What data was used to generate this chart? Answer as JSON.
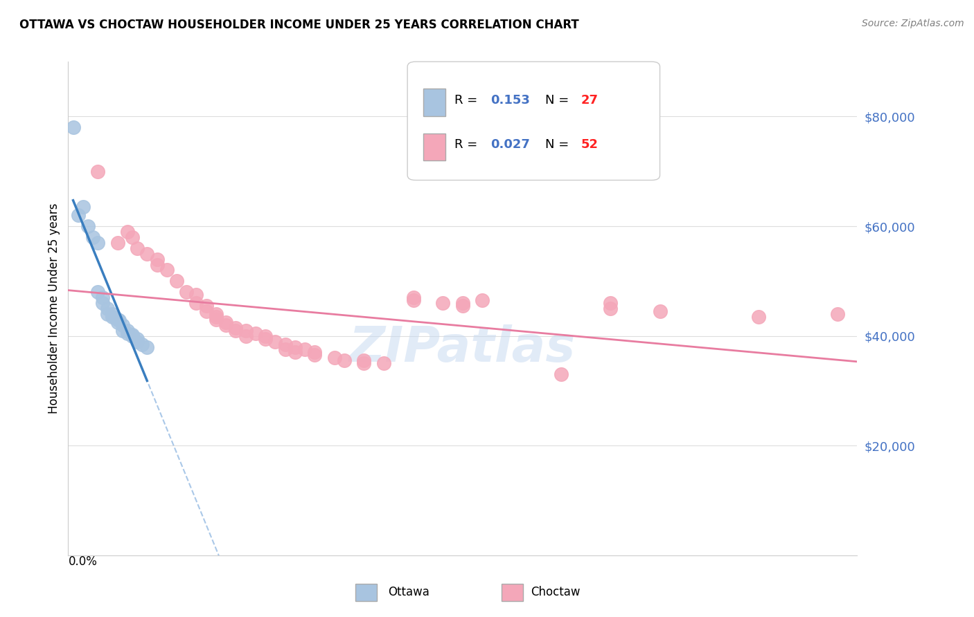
{
  "title": "OTTAWA VS CHOCTAW HOUSEHOLDER INCOME UNDER 25 YEARS CORRELATION CHART",
  "source": "Source: ZipAtlas.com",
  "ylabel": "Householder Income Under 25 years",
  "xlim": [
    0.0,
    0.8
  ],
  "ylim": [
    0,
    90000
  ],
  "yticks": [
    20000,
    40000,
    60000,
    80000
  ],
  "ytick_labels": [
    "$20,000",
    "$40,000",
    "$60,000",
    "$80,000"
  ],
  "ottawa_R": "0.153",
  "ottawa_N": "27",
  "choctaw_R": "0.027",
  "choctaw_N": "52",
  "ottawa_color": "#a8c4e0",
  "choctaw_color": "#f4a7b9",
  "ottawa_line_color": "#3a7ebf",
  "choctaw_line_color": "#e87ca0",
  "trendline_color": "#aac8e8",
  "watermark": "ZIPatlas",
  "ottawa_x": [
    0.005,
    0.01,
    0.015,
    0.02,
    0.025,
    0.03,
    0.03,
    0.035,
    0.035,
    0.04,
    0.04,
    0.045,
    0.045,
    0.048,
    0.05,
    0.05,
    0.052,
    0.055,
    0.055,
    0.06,
    0.06,
    0.065,
    0.065,
    0.07,
    0.07,
    0.075,
    0.08
  ],
  "ottawa_y": [
    78000,
    62000,
    63500,
    60000,
    58000,
    57000,
    48000,
    47000,
    46000,
    45000,
    44000,
    44000,
    43500,
    43200,
    43000,
    42500,
    42800,
    42000,
    41000,
    41000,
    40500,
    40000,
    40200,
    39500,
    39000,
    38500,
    38000
  ],
  "choctaw_x": [
    0.03,
    0.05,
    0.06,
    0.065,
    0.07,
    0.08,
    0.09,
    0.09,
    0.1,
    0.11,
    0.12,
    0.13,
    0.13,
    0.14,
    0.14,
    0.15,
    0.15,
    0.15,
    0.16,
    0.16,
    0.17,
    0.17,
    0.18,
    0.18,
    0.19,
    0.2,
    0.2,
    0.21,
    0.22,
    0.22,
    0.23,
    0.23,
    0.24,
    0.25,
    0.25,
    0.27,
    0.28,
    0.3,
    0.3,
    0.32,
    0.35,
    0.35,
    0.38,
    0.4,
    0.4,
    0.42,
    0.5,
    0.55,
    0.55,
    0.6,
    0.7,
    0.78
  ],
  "choctaw_y": [
    70000,
    57000,
    59000,
    58000,
    56000,
    55000,
    54000,
    53000,
    52000,
    50000,
    48000,
    47500,
    46000,
    45500,
    44500,
    44000,
    43500,
    43000,
    42500,
    42000,
    41500,
    41000,
    41000,
    40000,
    40500,
    40000,
    39500,
    39000,
    38500,
    37500,
    38000,
    37000,
    37500,
    37000,
    36500,
    36000,
    35500,
    35000,
    35500,
    35000,
    47000,
    46500,
    46000,
    46000,
    45500,
    46500,
    33000,
    46000,
    45000,
    44500,
    43500,
    44000
  ]
}
